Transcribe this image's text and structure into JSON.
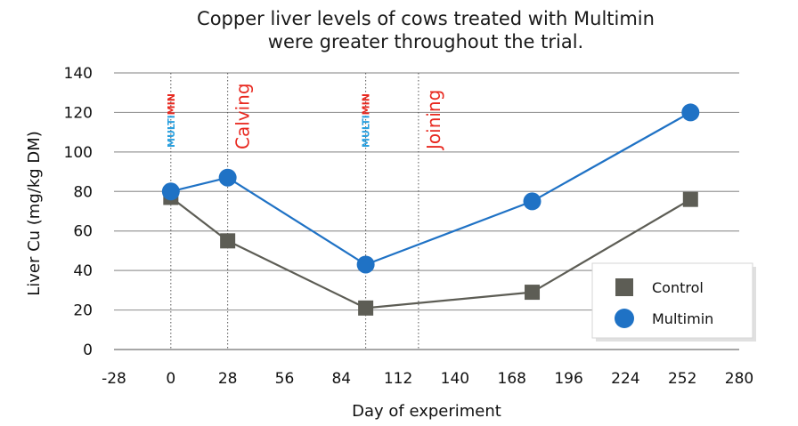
{
  "chart_data": {
    "type": "line",
    "title": [
      "Copper liver levels of cows treated with Multimin",
      "were greater throughout the trial."
    ],
    "xlabel": "Day of experiment",
    "ylabel": "Liver Cu (mg/kg DM)",
    "xlim": [
      -28,
      280
    ],
    "ylim": [
      0,
      140
    ],
    "x_ticks": [
      -28,
      0,
      28,
      56,
      84,
      112,
      140,
      168,
      196,
      224,
      252,
      280
    ],
    "y_ticks": [
      0,
      20,
      40,
      60,
      80,
      100,
      120,
      140
    ],
    "grid": "horizontal",
    "legend_position": "bottom-right",
    "series": [
      {
        "name": "Control",
        "marker": "square",
        "color": "#5d5d55",
        "x": [
          0,
          28,
          96,
          178,
          256
        ],
        "y": [
          77,
          55,
          21,
          29,
          76
        ]
      },
      {
        "name": "Multimin",
        "marker": "circle",
        "color": "#1f72c5",
        "x": [
          0,
          28,
          96,
          178,
          256
        ],
        "y": [
          80,
          87,
          43,
          75,
          120
        ]
      }
    ],
    "events": [
      {
        "x": 0,
        "type": "treatment",
        "part1": "MULTI",
        "part2": "MIN",
        "color1": "#2aa0df",
        "color2": "#e8281f"
      },
      {
        "x": 28,
        "type": "event",
        "label": "Calving",
        "color": "#e8281f"
      },
      {
        "x": 96,
        "type": "treatment",
        "part1": "MULTI",
        "part2": "MIN",
        "color1": "#2aa0df",
        "color2": "#e8281f"
      },
      {
        "x": 122,
        "type": "event",
        "label": "Joining",
        "color": "#e8281f"
      }
    ]
  }
}
